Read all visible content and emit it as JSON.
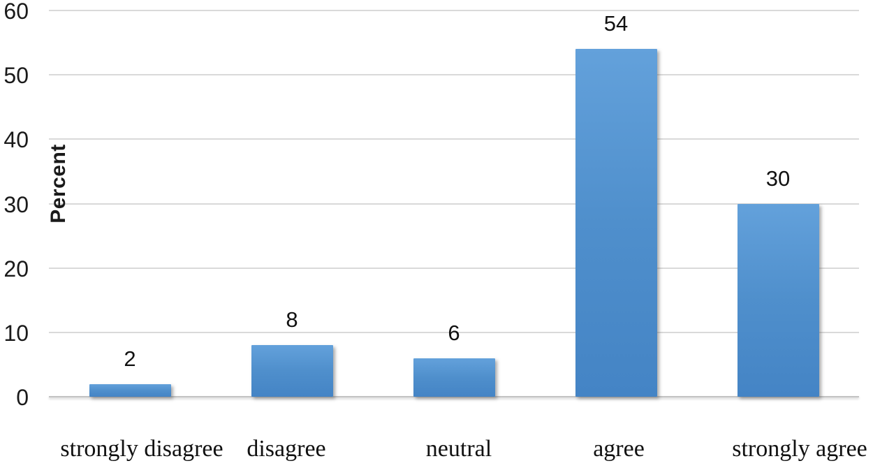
{
  "chart_data": {
    "type": "bar",
    "title": "",
    "categories": [
      "strongly disagree",
      "disagree",
      "neutral",
      "agree",
      "strongly agree"
    ],
    "values": [
      2,
      8,
      6,
      54,
      30
    ],
    "data_labels": [
      "2",
      "8",
      "6",
      "54",
      "30"
    ],
    "xlabel": "",
    "ylabel": "Percent",
    "ylim": [
      0,
      60
    ],
    "yticks": [
      0,
      10,
      20,
      30,
      40,
      50,
      60
    ],
    "grid": "horizontal",
    "legend": "none",
    "colors": {
      "bar_top": "#63A1DB",
      "bar_mid": "#4F8FCC",
      "bar_bottom": "#4484C5",
      "gridline": "#D9D9D9",
      "baseline": "#C2C2C2",
      "text": "#1A1A1A",
      "background": "#FFFFFF"
    }
  }
}
